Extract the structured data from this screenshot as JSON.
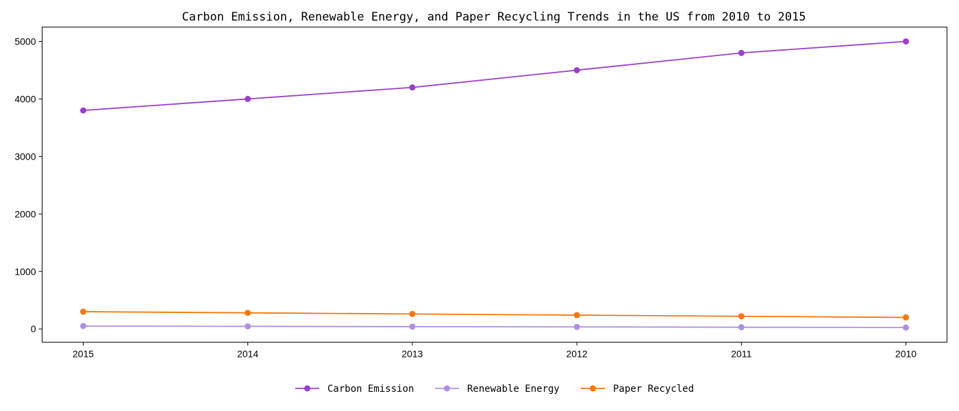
{
  "chart_data": {
    "type": "line",
    "title": "Carbon Emission, Renewable Energy, and Paper Recycling Trends in the US from 2010 to 2015",
    "xlabel": "",
    "ylabel": "",
    "categories": [
      "2015",
      "2014",
      "2013",
      "2012",
      "2011",
      "2010"
    ],
    "yticks": [
      "0",
      "1000",
      "2000",
      "3000",
      "4000",
      "5000"
    ],
    "ylim": [
      -230,
      5250
    ],
    "grid": false,
    "legend_position": "bottom-center",
    "series": [
      {
        "name": "Carbon Emission",
        "color": "#9b3fcc",
        "values": [
          3800,
          4000,
          4200,
          4500,
          4800,
          5000
        ]
      },
      {
        "name": "Renewable Energy",
        "color": "#b08fe3",
        "values": [
          50,
          45,
          40,
          35,
          30,
          25
        ]
      },
      {
        "name": "Paper Recycled",
        "color": "#f0780f",
        "values": [
          300,
          280,
          260,
          240,
          220,
          200
        ]
      }
    ]
  }
}
